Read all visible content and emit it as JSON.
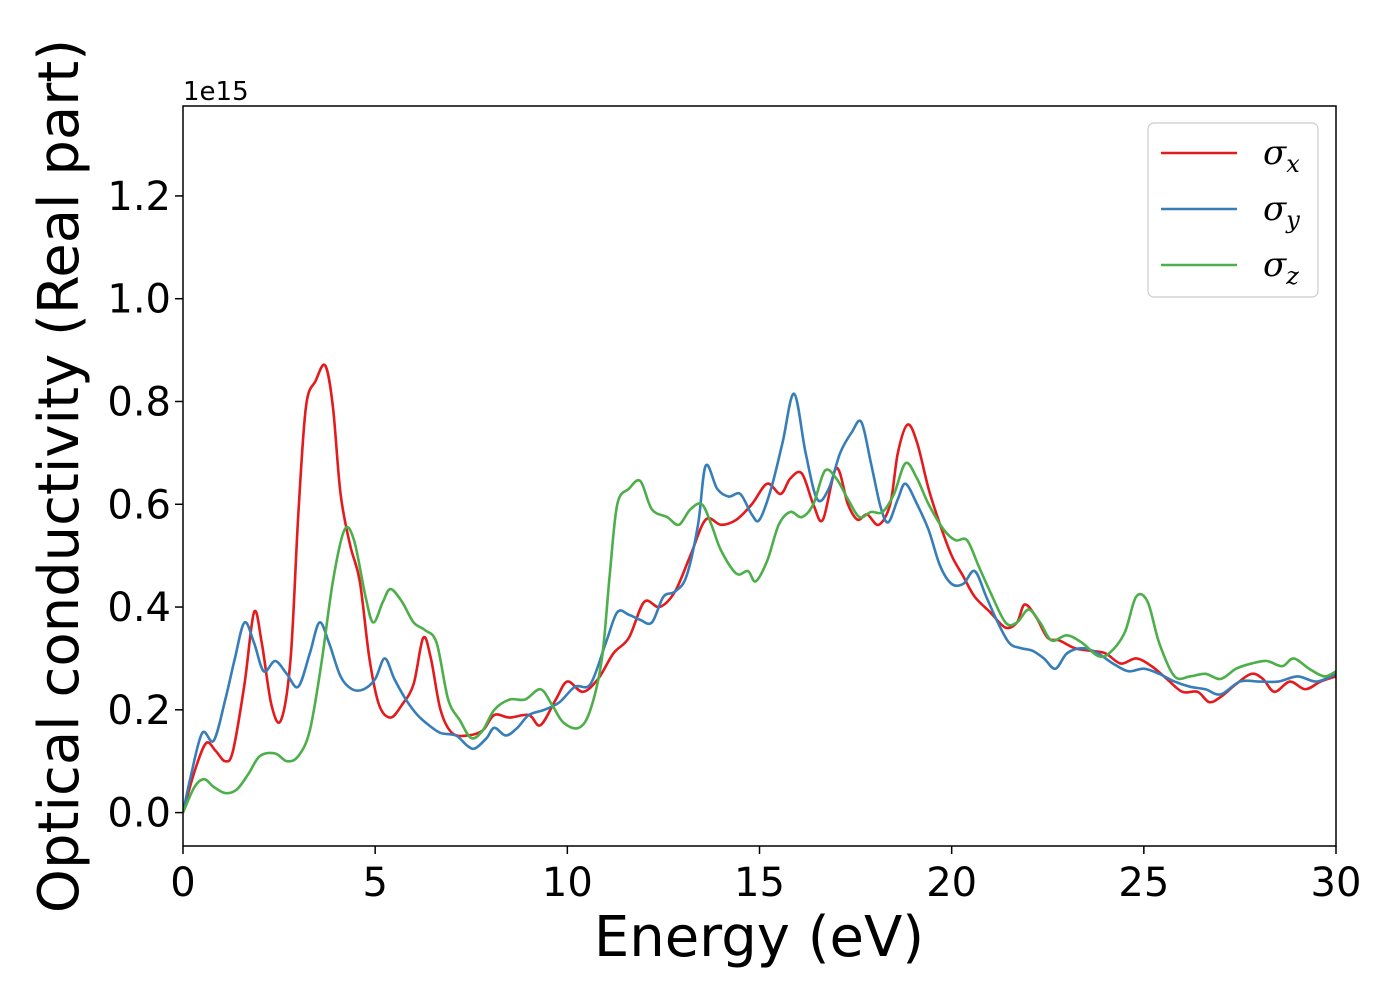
{
  "chart_data": {
    "type": "line",
    "xlabel": "Energy (eV)",
    "ylabel": "Optical conductivity (Real part)",
    "y_offset_label": "1e15",
    "xlim": [
      0,
      30
    ],
    "ylim": [
      -0.065,
      1.375
    ],
    "x_ticks": [
      0,
      5,
      10,
      15,
      20,
      25,
      30
    ],
    "x_tick_labels": [
      "0",
      "5",
      "10",
      "15",
      "20",
      "25",
      "30"
    ],
    "y_ticks": [
      0.0,
      0.2,
      0.4,
      0.6,
      0.8,
      1.0,
      1.2
    ],
    "y_tick_labels": [
      "0.0",
      "0.2",
      "0.4",
      "0.6",
      "0.8",
      "1.0",
      "1.2"
    ],
    "grid": false,
    "legend_position": "top-right",
    "series": [
      {
        "name": "σ",
        "subscript": "x",
        "color": "#e41a1c",
        "points": [
          [
            0,
            0
          ],
          [
            0.3,
            0.08
          ],
          [
            0.6,
            0.135
          ],
          [
            0.85,
            0.12
          ],
          [
            1.1,
            0.1
          ],
          [
            1.3,
            0.12
          ],
          [
            1.6,
            0.25
          ],
          [
            1.85,
            0.39
          ],
          [
            2.05,
            0.33
          ],
          [
            2.3,
            0.21
          ],
          [
            2.55,
            0.18
          ],
          [
            2.8,
            0.3
          ],
          [
            3.0,
            0.58
          ],
          [
            3.2,
            0.79
          ],
          [
            3.45,
            0.84
          ],
          [
            3.7,
            0.87
          ],
          [
            3.9,
            0.79
          ],
          [
            4.1,
            0.62
          ],
          [
            4.35,
            0.52
          ],
          [
            4.6,
            0.45
          ],
          [
            4.85,
            0.3
          ],
          [
            5.1,
            0.21
          ],
          [
            5.4,
            0.185
          ],
          [
            5.7,
            0.21
          ],
          [
            6.0,
            0.25
          ],
          [
            6.25,
            0.34
          ],
          [
            6.45,
            0.3
          ],
          [
            6.7,
            0.2
          ],
          [
            7.0,
            0.155
          ],
          [
            7.4,
            0.15
          ],
          [
            7.8,
            0.16
          ],
          [
            8.1,
            0.19
          ],
          [
            8.5,
            0.185
          ],
          [
            9.0,
            0.19
          ],
          [
            9.3,
            0.17
          ],
          [
            9.7,
            0.22
          ],
          [
            10.0,
            0.255
          ],
          [
            10.4,
            0.235
          ],
          [
            10.8,
            0.26
          ],
          [
            11.2,
            0.31
          ],
          [
            11.6,
            0.34
          ],
          [
            12.0,
            0.41
          ],
          [
            12.4,
            0.4
          ],
          [
            12.8,
            0.43
          ],
          [
            13.2,
            0.5
          ],
          [
            13.6,
            0.57
          ],
          [
            14.0,
            0.56
          ],
          [
            14.4,
            0.57
          ],
          [
            14.8,
            0.6
          ],
          [
            15.2,
            0.64
          ],
          [
            15.55,
            0.62
          ],
          [
            15.8,
            0.65
          ],
          [
            16.1,
            0.66
          ],
          [
            16.4,
            0.6
          ],
          [
            16.65,
            0.57
          ],
          [
            17.0,
            0.67
          ],
          [
            17.3,
            0.6
          ],
          [
            17.55,
            0.57
          ],
          [
            17.8,
            0.58
          ],
          [
            18.1,
            0.56
          ],
          [
            18.4,
            0.6
          ],
          [
            18.6,
            0.7
          ],
          [
            18.85,
            0.755
          ],
          [
            19.1,
            0.72
          ],
          [
            19.4,
            0.63
          ],
          [
            19.7,
            0.56
          ],
          [
            20.0,
            0.5
          ],
          [
            20.3,
            0.46
          ],
          [
            20.6,
            0.42
          ],
          [
            21.0,
            0.39
          ],
          [
            21.4,
            0.36
          ],
          [
            21.7,
            0.37
          ],
          [
            21.9,
            0.405
          ],
          [
            22.2,
            0.38
          ],
          [
            22.5,
            0.34
          ],
          [
            22.8,
            0.335
          ],
          [
            23.2,
            0.32
          ],
          [
            23.6,
            0.315
          ],
          [
            24.0,
            0.31
          ],
          [
            24.4,
            0.29
          ],
          [
            24.8,
            0.3
          ],
          [
            25.2,
            0.285
          ],
          [
            25.6,
            0.26
          ],
          [
            26.0,
            0.235
          ],
          [
            26.4,
            0.235
          ],
          [
            26.7,
            0.215
          ],
          [
            27.0,
            0.225
          ],
          [
            27.4,
            0.25
          ],
          [
            27.8,
            0.27
          ],
          [
            28.1,
            0.26
          ],
          [
            28.4,
            0.235
          ],
          [
            28.8,
            0.255
          ],
          [
            29.2,
            0.24
          ],
          [
            29.6,
            0.255
          ],
          [
            30,
            0.265
          ]
        ]
      },
      {
        "name": "σ",
        "subscript": "y",
        "color": "#377eb8",
        "points": [
          [
            0,
            0
          ],
          [
            0.2,
            0.07
          ],
          [
            0.5,
            0.155
          ],
          [
            0.8,
            0.14
          ],
          [
            1.1,
            0.22
          ],
          [
            1.35,
            0.3
          ],
          [
            1.6,
            0.37
          ],
          [
            1.85,
            0.33
          ],
          [
            2.1,
            0.275
          ],
          [
            2.4,
            0.295
          ],
          [
            2.7,
            0.27
          ],
          [
            3.0,
            0.245
          ],
          [
            3.3,
            0.31
          ],
          [
            3.55,
            0.37
          ],
          [
            3.8,
            0.33
          ],
          [
            4.1,
            0.265
          ],
          [
            4.4,
            0.24
          ],
          [
            4.7,
            0.24
          ],
          [
            5.0,
            0.26
          ],
          [
            5.25,
            0.3
          ],
          [
            5.5,
            0.26
          ],
          [
            5.8,
            0.22
          ],
          [
            6.1,
            0.19
          ],
          [
            6.4,
            0.17
          ],
          [
            6.7,
            0.155
          ],
          [
            7.1,
            0.15
          ],
          [
            7.4,
            0.13
          ],
          [
            7.6,
            0.125
          ],
          [
            7.9,
            0.145
          ],
          [
            8.1,
            0.165
          ],
          [
            8.4,
            0.15
          ],
          [
            8.7,
            0.165
          ],
          [
            9.0,
            0.19
          ],
          [
            9.4,
            0.2
          ],
          [
            9.8,
            0.215
          ],
          [
            10.2,
            0.245
          ],
          [
            10.6,
            0.25
          ],
          [
            11.0,
            0.33
          ],
          [
            11.3,
            0.39
          ],
          [
            11.6,
            0.385
          ],
          [
            11.9,
            0.375
          ],
          [
            12.2,
            0.37
          ],
          [
            12.5,
            0.42
          ],
          [
            12.8,
            0.43
          ],
          [
            13.1,
            0.46
          ],
          [
            13.4,
            0.56
          ],
          [
            13.6,
            0.675
          ],
          [
            13.9,
            0.63
          ],
          [
            14.2,
            0.615
          ],
          [
            14.5,
            0.62
          ],
          [
            14.8,
            0.58
          ],
          [
            15.0,
            0.57
          ],
          [
            15.3,
            0.63
          ],
          [
            15.6,
            0.72
          ],
          [
            15.9,
            0.815
          ],
          [
            16.2,
            0.7
          ],
          [
            16.5,
            0.61
          ],
          [
            16.8,
            0.63
          ],
          [
            17.1,
            0.7
          ],
          [
            17.4,
            0.74
          ],
          [
            17.65,
            0.76
          ],
          [
            17.9,
            0.68
          ],
          [
            18.15,
            0.595
          ],
          [
            18.35,
            0.565
          ],
          [
            18.6,
            0.61
          ],
          [
            18.8,
            0.64
          ],
          [
            19.1,
            0.6
          ],
          [
            19.4,
            0.55
          ],
          [
            19.7,
            0.48
          ],
          [
            20.0,
            0.445
          ],
          [
            20.3,
            0.445
          ],
          [
            20.6,
            0.47
          ],
          [
            20.9,
            0.42
          ],
          [
            21.2,
            0.37
          ],
          [
            21.5,
            0.33
          ],
          [
            21.8,
            0.32
          ],
          [
            22.1,
            0.315
          ],
          [
            22.4,
            0.3
          ],
          [
            22.7,
            0.28
          ],
          [
            23.0,
            0.31
          ],
          [
            23.4,
            0.32
          ],
          [
            23.8,
            0.31
          ],
          [
            24.2,
            0.29
          ],
          [
            24.6,
            0.275
          ],
          [
            25.0,
            0.28
          ],
          [
            25.4,
            0.27
          ],
          [
            25.8,
            0.255
          ],
          [
            26.2,
            0.245
          ],
          [
            26.6,
            0.24
          ],
          [
            27.0,
            0.23
          ],
          [
            27.5,
            0.255
          ],
          [
            28.0,
            0.255
          ],
          [
            28.5,
            0.255
          ],
          [
            29.0,
            0.265
          ],
          [
            29.5,
            0.255
          ],
          [
            30,
            0.27
          ]
        ]
      },
      {
        "name": "σ",
        "subscript": "z",
        "color": "#4daf4a",
        "points": [
          [
            0,
            0
          ],
          [
            0.3,
            0.05
          ],
          [
            0.55,
            0.065
          ],
          [
            0.8,
            0.05
          ],
          [
            1.1,
            0.038
          ],
          [
            1.4,
            0.045
          ],
          [
            1.7,
            0.075
          ],
          [
            2.0,
            0.11
          ],
          [
            2.4,
            0.115
          ],
          [
            2.7,
            0.1
          ],
          [
            3.0,
            0.11
          ],
          [
            3.3,
            0.16
          ],
          [
            3.6,
            0.29
          ],
          [
            3.9,
            0.45
          ],
          [
            4.2,
            0.55
          ],
          [
            4.45,
            0.53
          ],
          [
            4.75,
            0.42
          ],
          [
            4.95,
            0.37
          ],
          [
            5.2,
            0.41
          ],
          [
            5.4,
            0.435
          ],
          [
            5.7,
            0.41
          ],
          [
            6.0,
            0.37
          ],
          [
            6.3,
            0.355
          ],
          [
            6.6,
            0.33
          ],
          [
            6.9,
            0.22
          ],
          [
            7.2,
            0.18
          ],
          [
            7.5,
            0.145
          ],
          [
            7.8,
            0.16
          ],
          [
            8.1,
            0.2
          ],
          [
            8.5,
            0.22
          ],
          [
            8.9,
            0.22
          ],
          [
            9.3,
            0.24
          ],
          [
            9.6,
            0.21
          ],
          [
            9.9,
            0.175
          ],
          [
            10.3,
            0.165
          ],
          [
            10.6,
            0.2
          ],
          [
            10.9,
            0.3
          ],
          [
            11.1,
            0.46
          ],
          [
            11.3,
            0.6
          ],
          [
            11.6,
            0.63
          ],
          [
            11.9,
            0.645
          ],
          [
            12.2,
            0.59
          ],
          [
            12.6,
            0.575
          ],
          [
            12.9,
            0.56
          ],
          [
            13.2,
            0.59
          ],
          [
            13.5,
            0.6
          ],
          [
            13.75,
            0.56
          ],
          [
            14.0,
            0.51
          ],
          [
            14.4,
            0.465
          ],
          [
            14.7,
            0.47
          ],
          [
            14.9,
            0.45
          ],
          [
            15.2,
            0.49
          ],
          [
            15.5,
            0.56
          ],
          [
            15.8,
            0.585
          ],
          [
            16.1,
            0.575
          ],
          [
            16.4,
            0.6
          ],
          [
            16.7,
            0.665
          ],
          [
            17.0,
            0.65
          ],
          [
            17.3,
            0.61
          ],
          [
            17.6,
            0.575
          ],
          [
            17.9,
            0.585
          ],
          [
            18.2,
            0.585
          ],
          [
            18.5,
            0.62
          ],
          [
            18.8,
            0.68
          ],
          [
            19.1,
            0.65
          ],
          [
            19.4,
            0.6
          ],
          [
            19.8,
            0.55
          ],
          [
            20.1,
            0.53
          ],
          [
            20.4,
            0.53
          ],
          [
            20.7,
            0.48
          ],
          [
            21.0,
            0.43
          ],
          [
            21.4,
            0.37
          ],
          [
            21.7,
            0.37
          ],
          [
            22.0,
            0.395
          ],
          [
            22.3,
            0.37
          ],
          [
            22.6,
            0.335
          ],
          [
            23.0,
            0.345
          ],
          [
            23.4,
            0.33
          ],
          [
            23.8,
            0.305
          ],
          [
            24.1,
            0.31
          ],
          [
            24.5,
            0.35
          ],
          [
            24.8,
            0.42
          ],
          [
            25.1,
            0.41
          ],
          [
            25.4,
            0.33
          ],
          [
            25.8,
            0.265
          ],
          [
            26.2,
            0.265
          ],
          [
            26.6,
            0.27
          ],
          [
            27.0,
            0.26
          ],
          [
            27.4,
            0.28
          ],
          [
            27.8,
            0.29
          ],
          [
            28.2,
            0.295
          ],
          [
            28.6,
            0.285
          ],
          [
            28.9,
            0.3
          ],
          [
            29.3,
            0.28
          ],
          [
            29.7,
            0.265
          ],
          [
            30,
            0.275
          ]
        ]
      }
    ]
  }
}
